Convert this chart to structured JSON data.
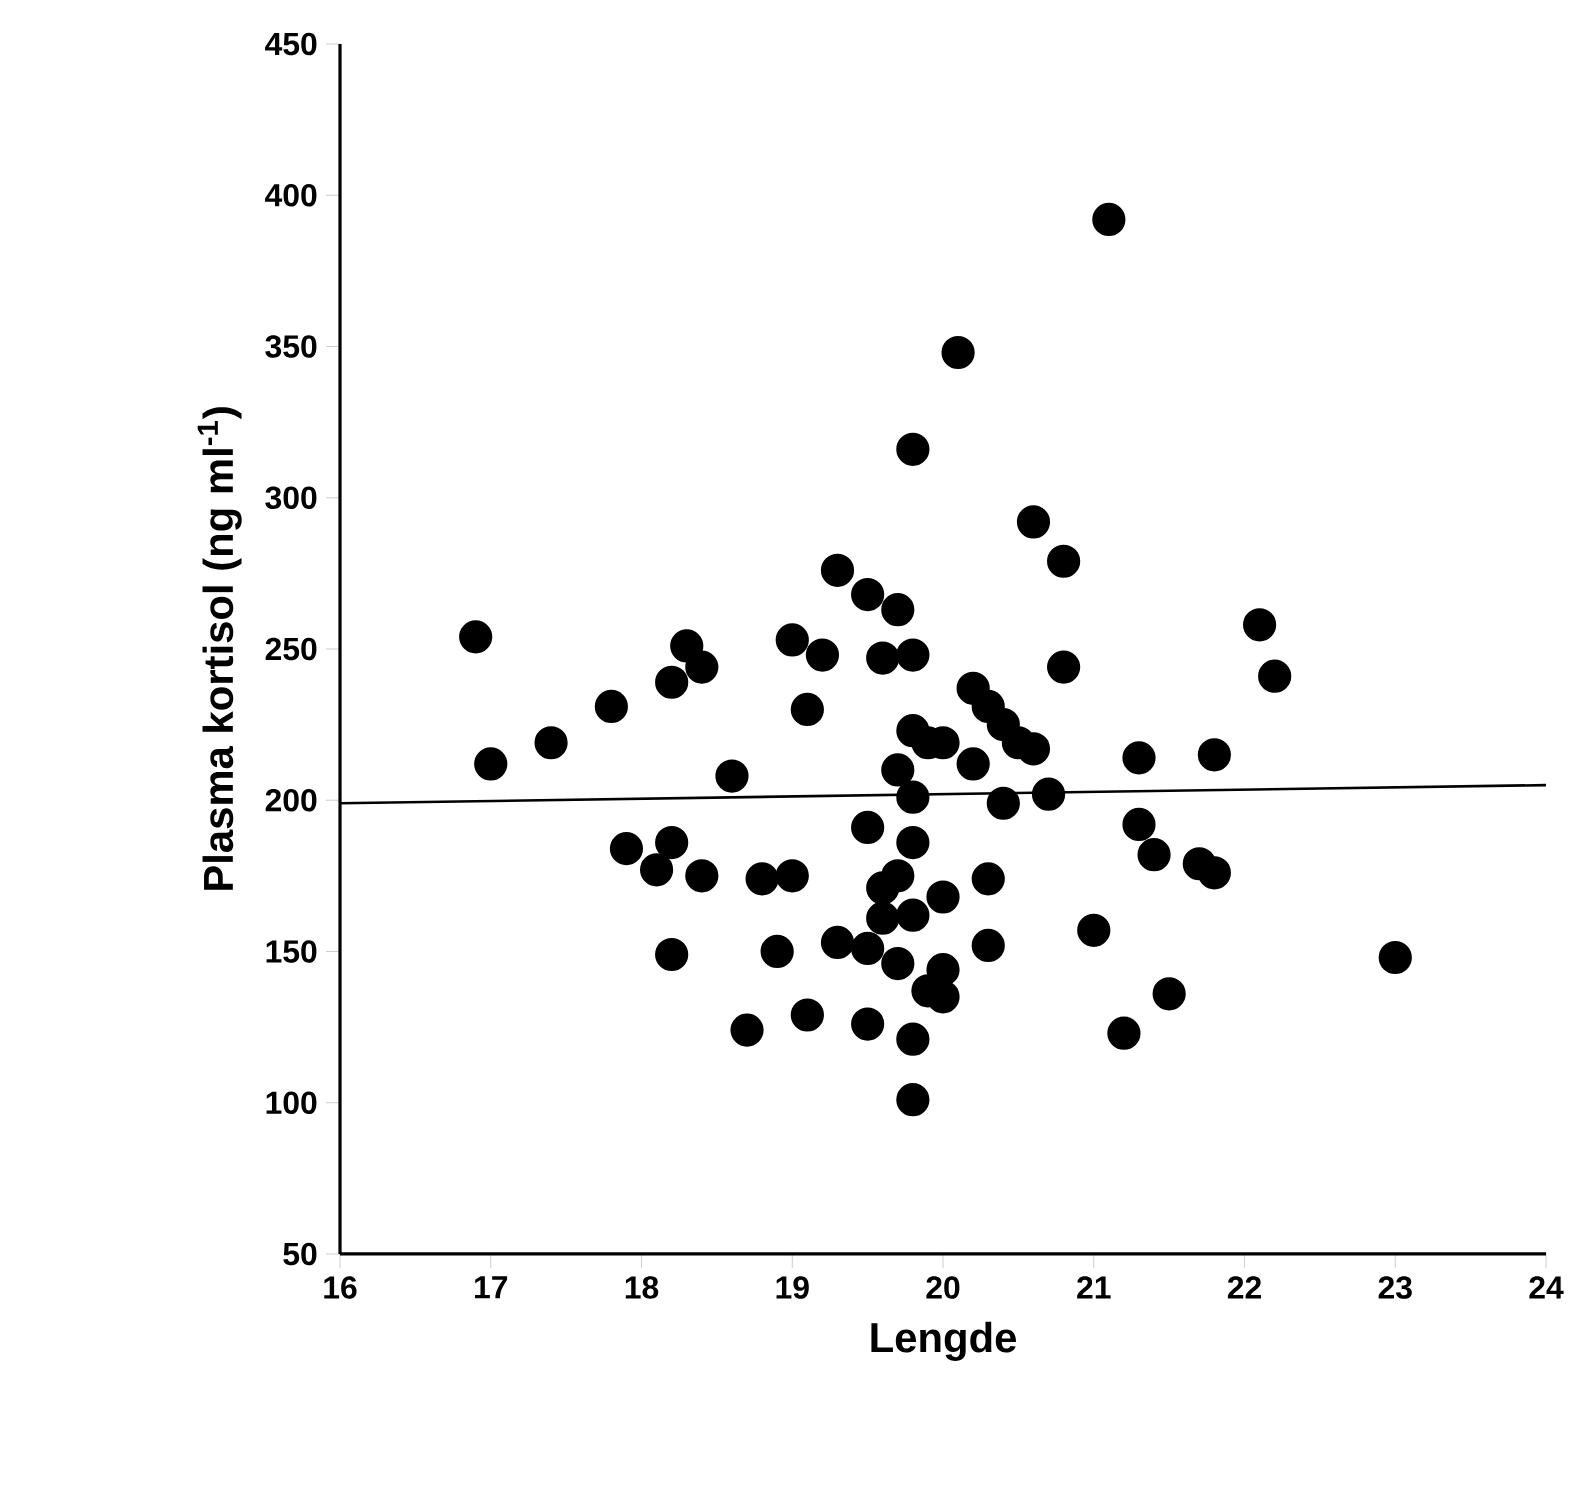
{
  "chart_data": {
    "type": "scatter",
    "xlabel": "Lengde",
    "ylabel": "Plasma kortisol (ng ml$^{-1}$)",
    "xlim": [
      16,
      24
    ],
    "xticks": [
      16,
      17,
      18,
      19,
      20,
      21,
      22,
      23,
      24
    ],
    "ylim": [
      50,
      450
    ],
    "yticks": [
      50,
      100,
      150,
      200,
      250,
      300,
      350,
      400,
      450
    ],
    "grid": false,
    "marker": "circle",
    "series": [
      {
        "color": "#000000",
        "x": [
          16.9,
          17.0,
          17.4,
          17.8,
          17.9,
          18.1,
          18.2,
          18.2,
          18.2,
          18.3,
          18.4,
          18.4,
          18.6,
          18.7,
          18.8,
          18.9,
          19.0,
          19.0,
          19.1,
          19.1,
          19.2,
          19.3,
          19.3,
          19.5,
          19.5,
          19.5,
          19.5,
          19.6,
          19.6,
          19.6,
          19.7,
          19.7,
          19.7,
          19.7,
          19.8,
          19.8,
          19.8,
          19.8,
          19.8,
          19.8,
          19.8,
          19.8,
          19.9,
          19.9,
          20.0,
          20.0,
          20.0,
          20.0,
          20.1,
          20.2,
          20.2,
          20.3,
          20.3,
          20.3,
          20.4,
          20.4,
          20.5,
          20.6,
          20.6,
          20.7,
          20.8,
          20.8,
          21.0,
          21.1,
          21.2,
          21.3,
          21.3,
          21.4,
          21.5,
          21.7,
          21.8,
          21.8,
          22.1,
          22.2,
          23.0
        ],
        "values": [
          254,
          212,
          219,
          231,
          184,
          177,
          239,
          186,
          149,
          251,
          244,
          175,
          208,
          124,
          174,
          150,
          253,
          175,
          230,
          129,
          248,
          276,
          153,
          268,
          191,
          151,
          126,
          247,
          171,
          161,
          263,
          210,
          175,
          146,
          316,
          248,
          223,
          201,
          186,
          162,
          121,
          101,
          219,
          137,
          219,
          168,
          144,
          135,
          348,
          237,
          212,
          231,
          174,
          152,
          225,
          199,
          219,
          292,
          217,
          202,
          279,
          244,
          157,
          392,
          123,
          214,
          192,
          182,
          136,
          179,
          215,
          176,
          258,
          241,
          148
        ]
      },
      {
        "type": "line",
        "color": "#000000",
        "marker": "none",
        "x": [
          16,
          24
        ],
        "values": [
          199,
          205
        ]
      }
    ]
  }
}
